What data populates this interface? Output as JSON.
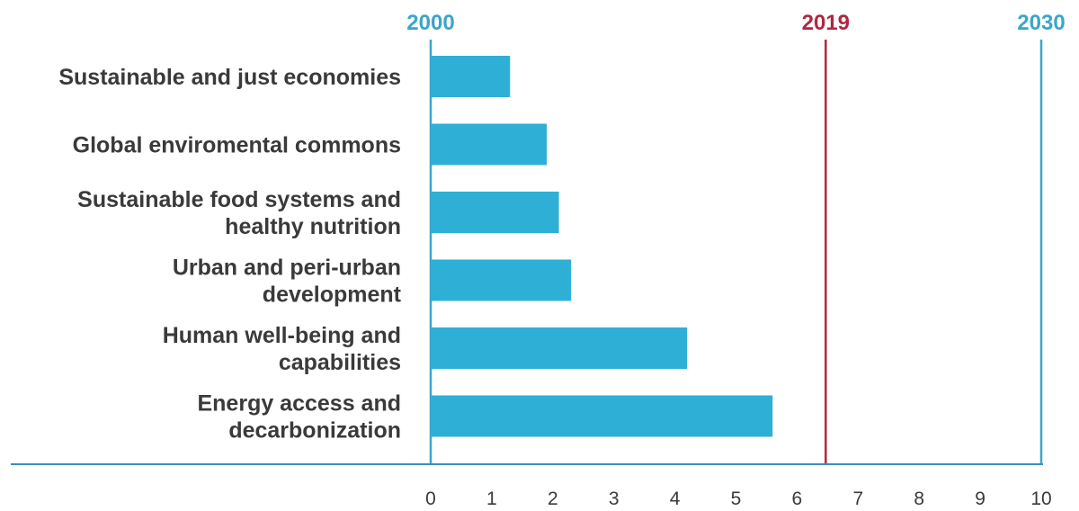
{
  "chart_data": {
    "type": "bar",
    "orientation": "horizontal",
    "categories": [
      "Sustainable and just economies",
      "Global enviromental commons",
      "Sustainable food systems and healthy nutrition",
      "Urban and peri-urban development",
      "Human well-being and capabilities",
      "Energy access and decarbonization"
    ],
    "category_lines": [
      [
        "Sustainable and just economies"
      ],
      [
        "Global enviromental commons"
      ],
      [
        "Sustainable food systems and",
        "healthy nutrition"
      ],
      [
        "Urban and peri-urban",
        "development"
      ],
      [
        "Human well-being and",
        "capabilities"
      ],
      [
        "Energy access and",
        "decarbonization"
      ]
    ],
    "values": [
      1.3,
      1.9,
      2.1,
      2.3,
      4.2,
      5.6
    ],
    "xlim": [
      0,
      10
    ],
    "xticks": [
      "0",
      "1",
      "2",
      "3",
      "4",
      "5",
      "6",
      "7",
      "8",
      "9",
      "10"
    ],
    "markers": [
      {
        "label": "2000",
        "x": 0,
        "color": "#3aa6c9"
      },
      {
        "label": "2019",
        "x": 6.47,
        "color": "#b0283f"
      },
      {
        "label": "2030",
        "x": 10,
        "color": "#3aa6c9"
      }
    ],
    "bar_color": "#2eafd5",
    "axis_color": "#3a8fba",
    "grid": false
  }
}
